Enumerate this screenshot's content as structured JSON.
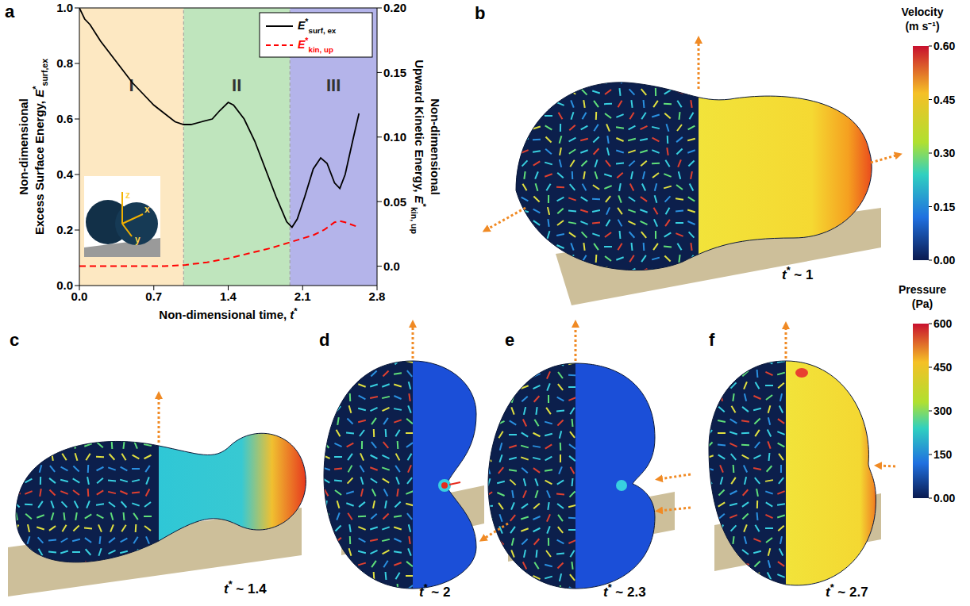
{
  "chart_data": {
    "type": "line",
    "xlabel": "Non-dimensional time, t*",
    "ylabel": [
      "Non-dimensional",
      "Excess Surface Energy, E*surf,ex"
    ],
    "y2label": [
      "Non-dimensional",
      "Upward Kinetic Energy, E*kin, up"
    ],
    "xlim": [
      0,
      2.8
    ],
    "xticks": [
      {
        "value": 0,
        "label": "0.0"
      },
      0.7,
      1.4,
      2.1,
      2.8
    ],
    "ylim": [
      0,
      1
    ],
    "yticks": [
      {
        "value": 0,
        "label": "0.0"
      },
      0.2,
      0.4,
      0.6,
      0.8,
      {
        "value": 1,
        "label": "1.0"
      }
    ],
    "y2lim": [
      -0.015,
      0.2
    ],
    "y2ticks": [
      {
        "value": 0,
        "label": "0.0"
      },
      0.05,
      {
        "value": 0.1,
        "label": "0.10"
      },
      0.15,
      {
        "value": 0.2,
        "label": "0.20"
      }
    ],
    "regions": [
      {
        "label": "I",
        "x": [
          0,
          0.98
        ],
        "color": "#fde8c2"
      },
      {
        "label": "II",
        "x": [
          0.98,
          1.98
        ],
        "color": "#bfe5bd"
      },
      {
        "label": "III",
        "x": [
          1.98,
          2.8
        ],
        "color": "#b4b4ea"
      }
    ],
    "series": [
      {
        "name": "E*surf, ex",
        "color": "#000000",
        "line_style": "solid",
        "x": [
          0,
          0.05,
          0.1,
          0.2,
          0.3,
          0.4,
          0.5,
          0.6,
          0.7,
          0.8,
          0.9,
          0.98,
          1.05,
          1.15,
          1.25,
          1.32,
          1.4,
          1.45,
          1.55,
          1.65,
          1.75,
          1.85,
          1.95,
          2.0,
          2.05,
          2.12,
          2.2,
          2.27,
          2.33,
          2.4,
          2.45,
          2.5,
          2.57,
          2.63
        ],
        "values": [
          1.0,
          0.96,
          0.94,
          0.88,
          0.83,
          0.78,
          0.73,
          0.69,
          0.65,
          0.62,
          0.59,
          0.58,
          0.58,
          0.59,
          0.6,
          0.63,
          0.66,
          0.65,
          0.6,
          0.52,
          0.42,
          0.32,
          0.23,
          0.21,
          0.24,
          0.32,
          0.42,
          0.46,
          0.44,
          0.37,
          0.35,
          0.4,
          0.52,
          0.62
        ]
      },
      {
        "name": "E*kin, up",
        "color": "#ff0000",
        "line_style": "dashed",
        "axis": "y2",
        "x": [
          0,
          0.4,
          0.8,
          1.0,
          1.2,
          1.4,
          1.6,
          1.8,
          2.0,
          2.2,
          2.3,
          2.4,
          2.45,
          2.5,
          2.6
        ],
        "values": [
          0,
          0,
          0,
          0.001,
          0.003,
          0.006,
          0.01,
          0.014,
          0.019,
          0.024,
          0.028,
          0.034,
          0.035,
          0.034,
          0.031
        ]
      }
    ],
    "legend": "upper right",
    "inset_axes": [
      "z",
      "x",
      "y"
    ]
  },
  "panels": [
    {
      "letter": "a"
    },
    {
      "letter": "b",
      "time_label": "t* ~ 1"
    },
    {
      "letter": "c",
      "time_label": "t* ~ 1.4"
    },
    {
      "letter": "d",
      "time_label": "t* ~ 2"
    },
    {
      "letter": "e",
      "time_label": "t* ~ 2.3"
    },
    {
      "letter": "f",
      "time_label": "t* ~ 2.7"
    }
  ],
  "colorbars": [
    {
      "title": "Velocity",
      "unit": "(m s⁻¹)",
      "range": [
        0,
        0.6
      ],
      "ticks": [
        {
          "value": 0,
          "label": "0.00"
        },
        0.15,
        {
          "value": 0.3,
          "label": "0.30"
        },
        0.45,
        {
          "value": 0.6,
          "label": "0.60"
        }
      ]
    },
    {
      "title": "Pressure",
      "unit": "(Pa)",
      "range": [
        0,
        600
      ],
      "ticks": [
        {
          "value": 0,
          "label": "0.00"
        },
        150,
        300,
        450,
        600
      ]
    }
  ]
}
